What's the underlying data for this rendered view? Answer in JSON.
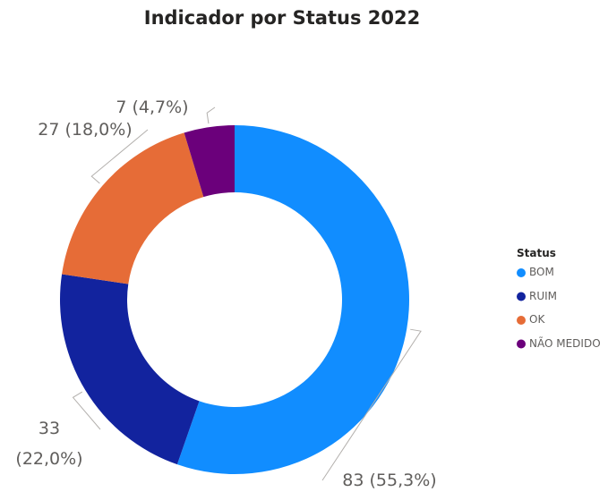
{
  "chart_data": {
    "type": "donut",
    "title": "Indicador por Status 2022",
    "legend_title": "Status",
    "legend_position": "right",
    "categories": [
      "BOM",
      "RUIM",
      "OK",
      "NÃO MEDIDO"
    ],
    "values": [
      83,
      33,
      27,
      7
    ],
    "value_labels": [
      "83 (55,3%)",
      "33 (22,0%)",
      "27 (18,0%)",
      "7 (4,7%)"
    ],
    "colors": [
      "#118DFF",
      "#12239E",
      "#E66C37",
      "#6B007B"
    ]
  }
}
